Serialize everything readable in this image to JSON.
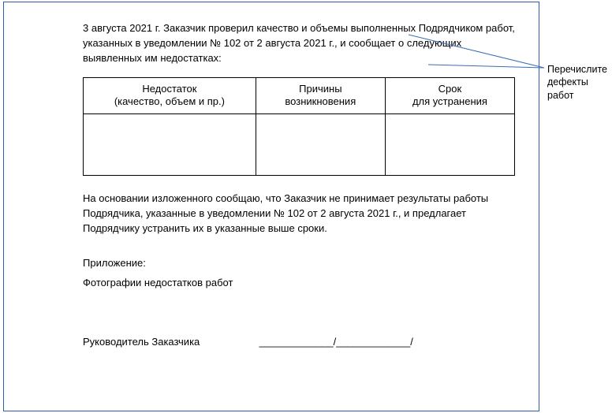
{
  "intro": "3 августа 2021 г. Заказчик проверил качество и объемы выполненных Подрядчиком работ, указанных в уведомлении № 102 от 2 августа 2021 г., и сообщает о следующих выявленных им недостатках:",
  "table": {
    "headers": {
      "defect": "Недостаток\n(качество, объем и пр.)",
      "cause": "Причины\nвозникновения",
      "deadline": "Срок\nдля устранения"
    },
    "row": {
      "defect": "",
      "cause": "",
      "deadline": ""
    }
  },
  "conclusion": "На основании изложенного сообщаю, что Заказчик не принимает результаты работы Подрядчика, указанные в уведомлении № 102 от 2 августа 2021 г., и предлагает Подрядчику устранить их в указанные выше сроки.",
  "attachment_label": "Приложение:",
  "attachment_text": "Фотографии недостатков работ",
  "signature_label": "Руководитель Заказчика",
  "signature_lines": "_____________/_____________/",
  "annotation": "Перечислите дефекты работ",
  "colors": {
    "frame_border": "#2a5caa",
    "leader_line": "#3a6fb3",
    "text": "#000000",
    "table_border": "#000000"
  }
}
